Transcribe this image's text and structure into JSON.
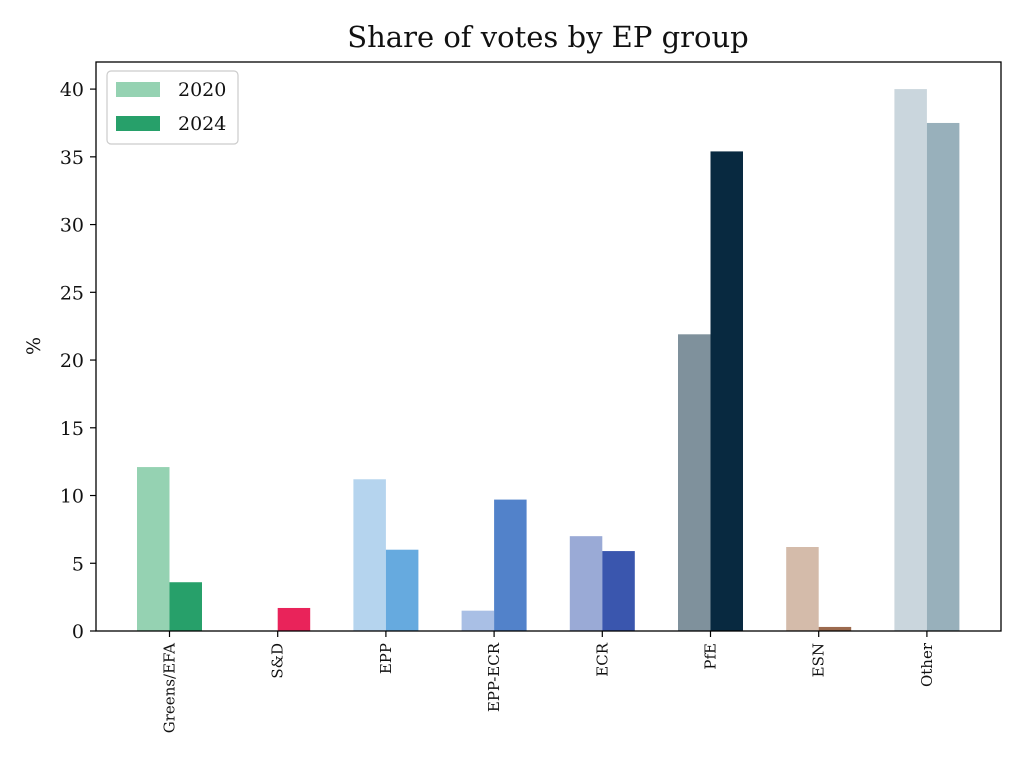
{
  "chart_data": {
    "type": "bar",
    "title": "Share of votes by EP group",
    "xlabel": "",
    "ylabel": "%",
    "ylim": [
      0,
      42
    ],
    "yticks": [
      0,
      5,
      10,
      15,
      20,
      25,
      30,
      35,
      40
    ],
    "grid": false,
    "legend_position": "top-left",
    "categories": [
      "Greens/EFA",
      "S&D",
      "EPP",
      "EPP-ECR",
      "ECR",
      "PfE",
      "ESN",
      "Other"
    ],
    "series": [
      {
        "name": "2020",
        "values": [
          12.1,
          0,
          11.2,
          1.5,
          7.0,
          21.9,
          6.2,
          40.0
        ],
        "colors": [
          "#95d2b2",
          "#f5a3b8",
          "#b5d4ee",
          "#a9bfe5",
          "#9aaad6",
          "#7f919c",
          "#d4bbaa",
          "#cad6dd"
        ],
        "legend_color": "#95d2b2"
      },
      {
        "name": "2024",
        "values": [
          3.6,
          1.7,
          6.0,
          9.7,
          5.9,
          35.4,
          0.3,
          37.5
        ],
        "colors": [
          "#27a06a",
          "#e9235a",
          "#66aadf",
          "#5282ca",
          "#3a56ae",
          "#082940",
          "#9c6a4e",
          "#98b0bb"
        ],
        "legend_color": "#27a06a"
      }
    ]
  }
}
